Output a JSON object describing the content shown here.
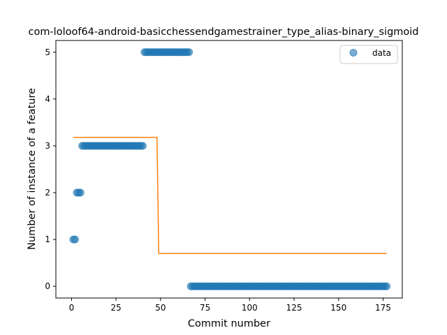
{
  "chart_data": {
    "type": "scatter",
    "title": "com-loloof64-android-basicchessendgamestrainer_type_alias-binary_sigmoid",
    "xlabel": "Commit number",
    "ylabel": "Number of instance of a feature",
    "xlim": [
      -8.8,
      185.8
    ],
    "ylim": [
      -0.25,
      5.25
    ],
    "xticks": [
      0,
      25,
      50,
      75,
      100,
      125,
      150,
      175
    ],
    "yticks": [
      0,
      1,
      2,
      3,
      4,
      5
    ],
    "grid": false,
    "legend_position": "top-right",
    "legend": [
      "data"
    ],
    "colors": {
      "data": "#1f77b4",
      "fit": "#ff7f0e"
    },
    "series": [
      {
        "name": "data",
        "kind": "scatter",
        "segments": [
          {
            "x_from": 1,
            "x_to": 2,
            "y": 1
          },
          {
            "x_from": 3,
            "x_to": 5,
            "y": 2
          },
          {
            "x_from": 6,
            "x_to": 40,
            "y": 3
          },
          {
            "x_from": 41,
            "x_to": 66,
            "y": 5
          },
          {
            "x_from": 67,
            "x_to": 177,
            "y": 0
          }
        ]
      },
      {
        "kind": "line",
        "x": [
          1,
          48,
          49,
          177
        ],
        "y": [
          3.18,
          3.18,
          0.7,
          0.7
        ]
      }
    ]
  }
}
